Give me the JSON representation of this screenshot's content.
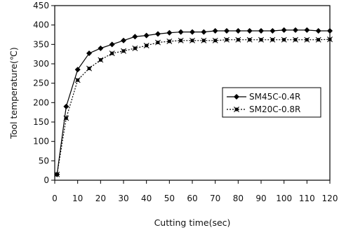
{
  "chart_data": {
    "type": "line",
    "title": "",
    "xlabel": "Cutting time(sec)",
    "ylabel": "Tool temperature(℃)",
    "xlim": [
      0,
      120
    ],
    "ylim": [
      0,
      450
    ],
    "xticks": [
      0,
      10,
      20,
      30,
      40,
      50,
      60,
      70,
      80,
      90,
      100,
      110,
      120
    ],
    "yticks": [
      0,
      50,
      100,
      150,
      200,
      250,
      300,
      350,
      400,
      450
    ],
    "grid": false,
    "legend_position": "center-right",
    "x": [
      1,
      5,
      10,
      15,
      20,
      25,
      30,
      35,
      40,
      45,
      50,
      55,
      60,
      65,
      70,
      75,
      80,
      85,
      90,
      95,
      100,
      105,
      110,
      115,
      120
    ],
    "series": [
      {
        "name": "SM45C-0.4R",
        "marker": "diamond",
        "line_style": "solid",
        "color": "#000000",
        "values": [
          15,
          190,
          285,
          327,
          340,
          350,
          360,
          370,
          373,
          377,
          380,
          382,
          382,
          382,
          385,
          385,
          385,
          385,
          385,
          385,
          387,
          387,
          387,
          385,
          385
        ]
      },
      {
        "name": "SM20C-0.8R",
        "marker": "asterisk",
        "line_style": "dotted",
        "color": "#000000",
        "values": [
          15,
          160,
          258,
          288,
          310,
          327,
          333,
          340,
          347,
          355,
          358,
          360,
          360,
          360,
          360,
          362,
          362,
          362,
          362,
          362,
          362,
          362,
          362,
          362,
          363
        ]
      }
    ]
  }
}
